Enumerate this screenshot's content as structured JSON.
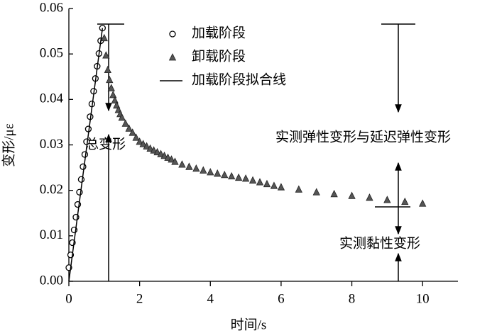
{
  "chart_data": {
    "type": "scatter",
    "x_label": "时间/s",
    "y_label": "变形/με",
    "xlim": [
      0,
      11
    ],
    "xticks": [
      0,
      2,
      4,
      6,
      8,
      10
    ],
    "ylim": [
      0,
      0.06
    ],
    "yticks": [
      {
        "value": 0,
        "label": "0.00"
      },
      0.01,
      0.02,
      0.03,
      0.04,
      0.05,
      0.06
    ],
    "legend": "top",
    "annotations": [
      "总变形",
      "实测弹性变形与延迟弹性变形",
      "实测黏性变形"
    ],
    "series": [
      {
        "name": "加载阶段",
        "marker": "circle",
        "color": "#000000",
        "x": [
          0,
          0.05,
          0.1,
          0.15,
          0.2,
          0.25,
          0.3,
          0.35,
          0.4,
          0.45,
          0.5,
          0.55,
          0.6,
          0.65,
          0.7,
          0.75,
          0.8,
          0.85,
          0.9,
          0.95
        ],
        "values": [
          0.003,
          0.0058,
          0.0085,
          0.0113,
          0.0141,
          0.0169,
          0.0196,
          0.0224,
          0.0252,
          0.0279,
          0.0307,
          0.0335,
          0.0362,
          0.039,
          0.0418,
          0.0446,
          0.0473,
          0.0501,
          0.0529,
          0.0557
        ]
      },
      {
        "name": "卸载阶段",
        "marker": "triangle",
        "color": "#555555",
        "x": [
          1.0,
          1.05,
          1.1,
          1.15,
          1.2,
          1.25,
          1.3,
          1.35,
          1.4,
          1.45,
          1.5,
          1.6,
          1.7,
          1.8,
          1.9,
          2.0,
          2.1,
          2.2,
          2.3,
          2.4,
          2.5,
          2.6,
          2.7,
          2.8,
          2.9,
          3.0,
          3.2,
          3.4,
          3.6,
          3.8,
          4.0,
          4.2,
          4.4,
          4.6,
          4.8,
          5.0,
          5.2,
          5.4,
          5.6,
          5.8,
          6.0,
          6.5,
          7.0,
          7.5,
          8.0,
          8.5,
          9.0,
          9.5,
          10.0
        ],
        "values": [
          0.0535,
          0.0497,
          0.0465,
          0.0443,
          0.0425,
          0.041,
          0.0398,
          0.0387,
          0.0377,
          0.0368,
          0.036,
          0.0347,
          0.0336,
          0.0327,
          0.0316,
          0.0307,
          0.0302,
          0.0297,
          0.0292,
          0.0288,
          0.0284,
          0.028,
          0.0276,
          0.0272,
          0.0268,
          0.0263,
          0.0257,
          0.0252,
          0.0248,
          0.0244,
          0.024,
          0.0237,
          0.0234,
          0.0231,
          0.0228,
          0.0226,
          0.0222,
          0.0218,
          0.0214,
          0.021,
          0.0207,
          0.0202,
          0.0196,
          0.0192,
          0.0188,
          0.0184,
          0.0179,
          0.0175,
          0.0171
        ]
      },
      {
        "name": "加载阶段拟合线",
        "marker": "line",
        "color": "#000000",
        "x": [
          0,
          0.95
        ],
        "values": [
          0,
          0.0557
        ]
      }
    ]
  }
}
